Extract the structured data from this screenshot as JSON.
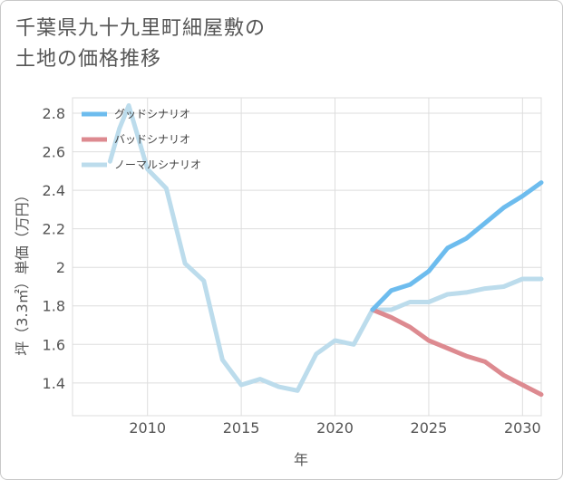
{
  "title_line1": "千葉県九十九里町細屋敷の",
  "title_line2": "土地の価格推移",
  "chart_data": {
    "type": "line",
    "xlabel": "年",
    "ylabel": "坪（3.3㎡）単価（万円）",
    "xlim": [
      2006,
      2031
    ],
    "ylim": [
      1.23,
      2.88
    ],
    "xticks": [
      2010,
      2015,
      2020,
      2025,
      2030
    ],
    "yticks": [
      1.4,
      1.6,
      1.8,
      2.0,
      2.2,
      2.4,
      2.6,
      2.8
    ],
    "ytick_labels": [
      "1.4",
      "1.6",
      "1.8",
      "2",
      "2.2",
      "2.4",
      "2.6",
      "2.8"
    ],
    "grid": true,
    "legend_position": "top-left",
    "series": [
      {
        "name": "グッドシナリオ",
        "color": "#6dbcee",
        "x": [
          2022,
          2023,
          2024,
          2025,
          2026,
          2027,
          2028,
          2029,
          2030,
          2031
        ],
        "y": [
          1.78,
          1.88,
          1.91,
          1.98,
          2.1,
          2.15,
          2.23,
          2.31,
          2.37,
          2.44
        ]
      },
      {
        "name": "バッドシナリオ",
        "color": "#dd8a90",
        "x": [
          2022,
          2023,
          2024,
          2025,
          2026,
          2027,
          2028,
          2029,
          2030,
          2031
        ],
        "y": [
          1.78,
          1.74,
          1.69,
          1.62,
          1.58,
          1.54,
          1.51,
          1.44,
          1.39,
          1.34
        ]
      },
      {
        "name": "ノーマルシナリオ",
        "color": "#bcdcec",
        "x": [
          2008,
          2008.5,
          2009,
          2010,
          2011,
          2012,
          2013,
          2014,
          2015,
          2016,
          2017,
          2018,
          2019,
          2020,
          2021,
          2022,
          2023,
          2024,
          2025,
          2026,
          2027,
          2028,
          2029,
          2030,
          2031
        ],
        "y": [
          2.55,
          2.72,
          2.84,
          2.51,
          2.41,
          2.02,
          1.93,
          1.52,
          1.39,
          1.42,
          1.38,
          1.36,
          1.55,
          1.62,
          1.6,
          1.78,
          1.78,
          1.82,
          1.82,
          1.86,
          1.87,
          1.89,
          1.9,
          1.94,
          1.94
        ]
      }
    ]
  }
}
